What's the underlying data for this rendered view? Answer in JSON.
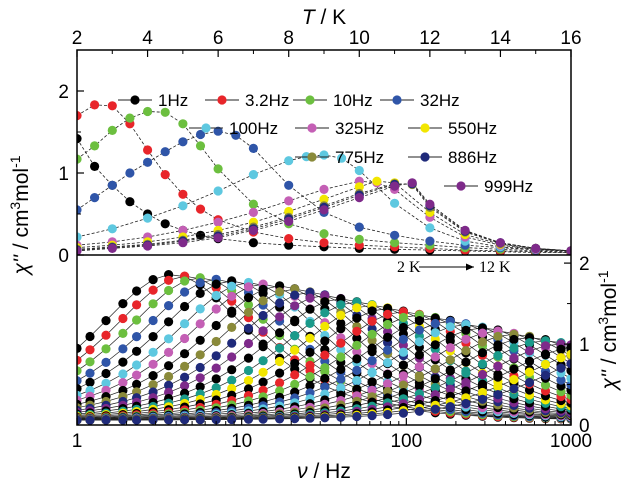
{
  "chart_data": [
    {
      "type": "line",
      "panel": "top",
      "xlabel": "T / K",
      "ylabel": "χ'' / cm3mol-1",
      "xlim": [
        2,
        16
      ],
      "ylim": [
        0,
        2.5
      ],
      "x_ticks": [
        2,
        4,
        6,
        8,
        10,
        12,
        14,
        16
      ],
      "y_ticks": [
        0,
        1,
        2
      ],
      "legend_placement": "top",
      "series": [
        {
          "name": "1Hz",
          "color": "#000000",
          "x": [
            2.0,
            2.5,
            3.0,
            3.5,
            4.0,
            4.5,
            5.0,
            5.5,
            6.0,
            7.0,
            8.0,
            9.0,
            10.0,
            11.0,
            12.0,
            13.0,
            14.0,
            15.0,
            16.0
          ],
          "y": [
            1.42,
            1.08,
            0.85,
            0.65,
            0.5,
            0.38,
            0.3,
            0.24,
            0.2,
            0.15,
            0.12,
            0.1,
            0.08,
            0.07,
            0.06,
            0.05,
            0.04,
            0.03,
            0.03
          ]
        },
        {
          "name": "3.2Hz",
          "color": "#e8252a",
          "x": [
            2.0,
            2.5,
            3.0,
            3.5,
            4.0,
            4.5,
            5.0,
            5.5,
            6.0,
            7.0,
            8.0,
            9.0,
            10.0,
            11.0,
            12.0,
            13.0,
            14.0,
            15.0,
            16.0
          ],
          "y": [
            1.7,
            1.83,
            1.82,
            1.6,
            1.28,
            0.98,
            0.74,
            0.56,
            0.43,
            0.28,
            0.2,
            0.15,
            0.12,
            0.1,
            0.08,
            0.06,
            0.05,
            0.04,
            0.03
          ]
        },
        {
          "name": "10Hz",
          "color": "#6cbf3f",
          "x": [
            2.0,
            2.5,
            3.0,
            3.5,
            4.0,
            4.5,
            5.0,
            5.5,
            6.0,
            7.0,
            8.0,
            9.0,
            10.0,
            11.0,
            12.0,
            13.0,
            14.0,
            15.0,
            16.0
          ],
          "y": [
            1.17,
            1.33,
            1.52,
            1.67,
            1.75,
            1.74,
            1.6,
            1.33,
            1.05,
            0.62,
            0.38,
            0.26,
            0.19,
            0.15,
            0.12,
            0.09,
            0.07,
            0.05,
            0.04
          ]
        },
        {
          "name": "32Hz",
          "color": "#2f55a8",
          "x": [
            2.0,
            2.5,
            3.0,
            3.5,
            4.0,
            4.5,
            5.0,
            5.5,
            6.0,
            6.5,
            7.0,
            8.0,
            9.0,
            10.0,
            11.0,
            12.0,
            13.0,
            14.0,
            15.0,
            16.0
          ],
          "y": [
            0.55,
            0.7,
            0.85,
            1.0,
            1.13,
            1.26,
            1.38,
            1.47,
            1.51,
            1.46,
            1.3,
            0.85,
            0.52,
            0.34,
            0.24,
            0.17,
            0.12,
            0.09,
            0.06,
            0.05
          ]
        },
        {
          "name": "100Hz",
          "color": "#5ec8e0",
          "x": [
            2.0,
            3.0,
            4.0,
            5.0,
            6.0,
            7.0,
            8.0,
            8.5,
            9.0,
            9.5,
            10.0,
            11.0,
            12.0,
            13.0,
            14.0,
            15.0,
            16.0
          ],
          "y": [
            0.22,
            0.32,
            0.45,
            0.6,
            0.78,
            0.98,
            1.15,
            1.2,
            1.22,
            1.18,
            1.03,
            0.63,
            0.33,
            0.17,
            0.1,
            0.07,
            0.05
          ]
        },
        {
          "name": "325Hz",
          "color": "#c45fb5",
          "x": [
            2.0,
            3.0,
            4.0,
            5.0,
            6.0,
            7.0,
            8.0,
            9.0,
            10.0,
            10.5,
            11.0,
            12.0,
            13.0,
            14.0,
            15.0,
            16.0
          ],
          "y": [
            0.12,
            0.16,
            0.22,
            0.3,
            0.4,
            0.52,
            0.66,
            0.8,
            0.9,
            0.88,
            0.8,
            0.46,
            0.22,
            0.12,
            0.07,
            0.05
          ]
        },
        {
          "name": "550Hz",
          "color": "#f2e600",
          "x": [
            2.0,
            3.0,
            4.0,
            5.0,
            6.0,
            7.0,
            8.0,
            9.0,
            10.0,
            10.5,
            11.0,
            12.0,
            13.0,
            14.0,
            15.0,
            16.0
          ],
          "y": [
            0.09,
            0.12,
            0.16,
            0.22,
            0.3,
            0.4,
            0.53,
            0.68,
            0.83,
            0.9,
            0.88,
            0.52,
            0.25,
            0.13,
            0.08,
            0.05
          ]
        },
        {
          "name": "775Hz",
          "color": "#8a8a3a",
          "x": [
            2.0,
            3.0,
            4.0,
            5.0,
            6.0,
            7.0,
            8.0,
            9.0,
            10.0,
            11.0,
            11.5,
            12.0,
            13.0,
            14.0,
            15.0,
            16.0
          ],
          "y": [
            0.07,
            0.1,
            0.13,
            0.18,
            0.25,
            0.34,
            0.46,
            0.6,
            0.75,
            0.87,
            0.86,
            0.58,
            0.28,
            0.14,
            0.08,
            0.05
          ]
        },
        {
          "name": "886Hz",
          "color": "#1f2a7a",
          "x": [
            2.0,
            3.0,
            4.0,
            5.0,
            6.0,
            7.0,
            8.0,
            9.0,
            10.0,
            11.0,
            11.5,
            12.0,
            13.0,
            14.0,
            15.0,
            16.0
          ],
          "y": [
            0.06,
            0.09,
            0.12,
            0.17,
            0.23,
            0.32,
            0.44,
            0.58,
            0.73,
            0.86,
            0.87,
            0.6,
            0.29,
            0.15,
            0.08,
            0.05
          ]
        },
        {
          "name": "999Hz",
          "color": "#7e2a8a",
          "x": [
            2.0,
            3.0,
            4.0,
            5.0,
            6.0,
            7.0,
            8.0,
            9.0,
            10.0,
            11.0,
            11.5,
            12.0,
            13.0,
            14.0,
            15.0,
            16.0
          ],
          "y": [
            0.05,
            0.08,
            0.11,
            0.15,
            0.21,
            0.3,
            0.41,
            0.55,
            0.7,
            0.84,
            0.88,
            0.62,
            0.3,
            0.15,
            0.08,
            0.05
          ]
        }
      ]
    },
    {
      "type": "scatter",
      "panel": "bottom",
      "xlabel": "ν / Hz",
      "ylabel": "χ'' / cm3mol-1",
      "xscale": "log",
      "xlim": [
        1,
        1000
      ],
      "ylim": [
        0,
        2.1
      ],
      "x_ticks": [
        1,
        10,
        100,
        1000
      ],
      "y_ticks": [
        0,
        1,
        2
      ],
      "annotation": {
        "from": "2 K",
        "to": "12 K"
      },
      "x": [
        1,
        1.2,
        1.5,
        1.9,
        2.3,
        2.9,
        3.6,
        4.5,
        5.6,
        7,
        8.7,
        11,
        13.5,
        17,
        21,
        26,
        32,
        40,
        50,
        62,
        77,
        96,
        120,
        150,
        185,
        230,
        290,
        360,
        450,
        560,
        700,
        870,
        1000
      ],
      "curves": [
        {
          "temperature": 2.0,
          "tau_hz": 3.8,
          "amplitude": 1.8,
          "color": "#000000"
        },
        {
          "temperature": 2.3,
          "tau_hz": 4.6,
          "amplitude": 1.78,
          "color": "#e8252a"
        },
        {
          "temperature": 2.6,
          "tau_hz": 5.6,
          "amplitude": 1.76,
          "color": "#6cbf3f"
        },
        {
          "temperature": 2.9,
          "tau_hz": 7.0,
          "amplitude": 1.74,
          "color": "#2f55a8"
        },
        {
          "temperature": 3.2,
          "tau_hz": 8.7,
          "amplitude": 1.72,
          "color": "#000000"
        },
        {
          "temperature": 3.5,
          "tau_hz": 11,
          "amplitude": 1.7,
          "color": "#5ec8e0"
        },
        {
          "temperature": 3.8,
          "tau_hz": 13.5,
          "amplitude": 1.68,
          "color": "#c45fb5"
        },
        {
          "temperature": 4.1,
          "tau_hz": 17,
          "amplitude": 1.66,
          "color": "#000000"
        },
        {
          "temperature": 4.4,
          "tau_hz": 21,
          "amplitude": 1.62,
          "color": "#8a8a3a"
        },
        {
          "temperature": 4.7,
          "tau_hz": 26,
          "amplitude": 1.58,
          "color": "#1f2a7a"
        },
        {
          "temperature": 5.0,
          "tau_hz": 32,
          "amplitude": 1.54,
          "color": "#7e2a8a"
        },
        {
          "temperature": 5.3,
          "tau_hz": 40,
          "amplitude": 1.5,
          "color": "#000000"
        },
        {
          "temperature": 5.6,
          "tau_hz": 50,
          "amplitude": 1.46,
          "color": "#1a9a8a"
        },
        {
          "temperature": 5.9,
          "tau_hz": 62,
          "amplitude": 1.42,
          "color": "#f2e600"
        },
        {
          "temperature": 6.2,
          "tau_hz": 77,
          "amplitude": 1.38,
          "color": "#000000"
        },
        {
          "temperature": 6.5,
          "tau_hz": 96,
          "amplitude": 1.34,
          "color": "#e8252a"
        },
        {
          "temperature": 6.8,
          "tau_hz": 120,
          "amplitude": 1.3,
          "color": "#6cbf3f"
        },
        {
          "temperature": 7.1,
          "tau_hz": 150,
          "amplitude": 1.26,
          "color": "#000000"
        },
        {
          "temperature": 7.4,
          "tau_hz": 185,
          "amplitude": 1.22,
          "color": "#2f55a8"
        },
        {
          "temperature": 7.7,
          "tau_hz": 230,
          "amplitude": 1.18,
          "color": "#5ec8e0"
        },
        {
          "temperature": 8.0,
          "tau_hz": 290,
          "amplitude": 1.14,
          "color": "#000000"
        },
        {
          "temperature": 8.5,
          "tau_hz": 360,
          "amplitude": 1.1,
          "color": "#c45fb5"
        },
        {
          "temperature": 9.0,
          "tau_hz": 450,
          "amplitude": 1.06,
          "color": "#8a8a3a"
        },
        {
          "temperature": 9.5,
          "tau_hz": 560,
          "amplitude": 1.02,
          "color": "#000000"
        },
        {
          "temperature": 10.0,
          "tau_hz": 700,
          "amplitude": 0.98,
          "color": "#1a9a8a"
        },
        {
          "temperature": 10.5,
          "tau_hz": 870,
          "amplitude": 0.94,
          "color": "#7e2a8a"
        },
        {
          "temperature": 11.0,
          "tau_hz": 1100,
          "amplitude": 0.9,
          "color": "#000000"
        },
        {
          "temperature": 11.5,
          "tau_hz": 1400,
          "amplitude": 0.86,
          "color": "#f2e600"
        },
        {
          "temperature": 12.0,
          "tau_hz": 1800,
          "amplitude": 0.82,
          "color": "#1f2a7a"
        }
      ]
    }
  ]
}
